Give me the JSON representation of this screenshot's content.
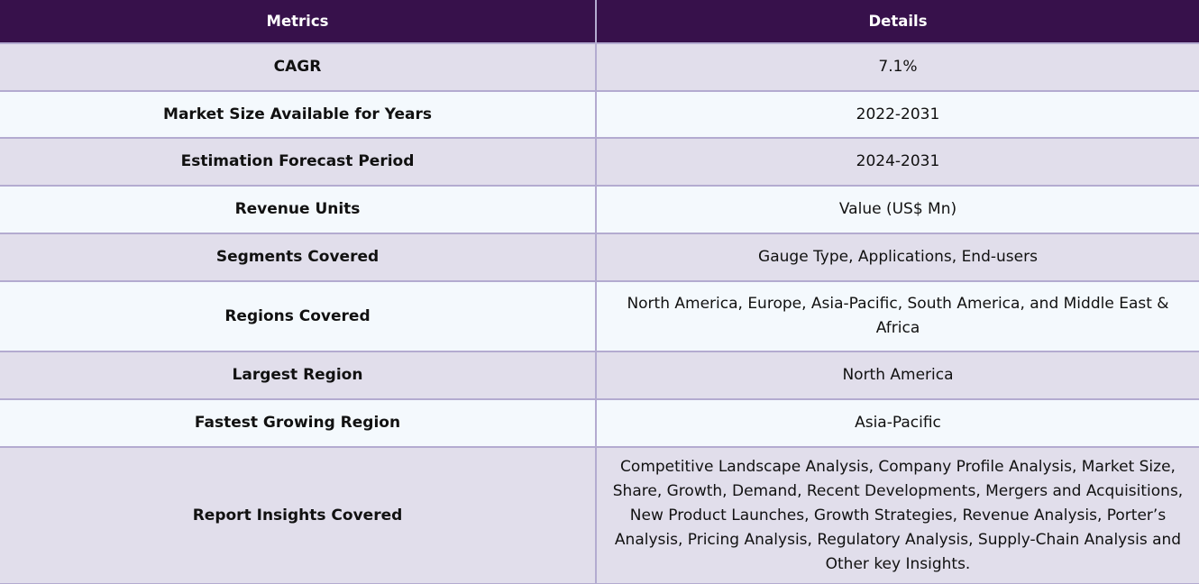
{
  "header": {
    "metrics": "Metrics",
    "details": "Details"
  },
  "rows": [
    {
      "metric": "CAGR",
      "detail": "7.1%"
    },
    {
      "metric": "Market Size Available for Years",
      "detail": "2022-2031"
    },
    {
      "metric": "Estimation Forecast Period",
      "detail": "2024-2031"
    },
    {
      "metric": "Revenue Units",
      "detail": "Value (US$ Mn)"
    },
    {
      "metric": "Segments Covered",
      "detail": "Gauge Type, Applications, End-users"
    },
    {
      "metric": "Regions Covered",
      "detail": "North America, Europe, Asia-Pacific, South America, and Middle East & Africa"
    },
    {
      "metric": "Largest Region",
      "detail": "North America"
    },
    {
      "metric": "Fastest Growing Region",
      "detail": "Asia-Pacific"
    },
    {
      "metric": "Report Insights Covered",
      "detail": "Competitive Landscape Analysis, Company Profile Analysis, Market Size, Share, Growth, Demand, Recent Developments, Mergers and Acquisitions, New Product Launches, Growth Strategies, Revenue Analysis, Porter’s Analysis, Pricing Analysis, Regulatory Analysis, Supply-Chain Analysis and Other key Insights."
    }
  ]
}
